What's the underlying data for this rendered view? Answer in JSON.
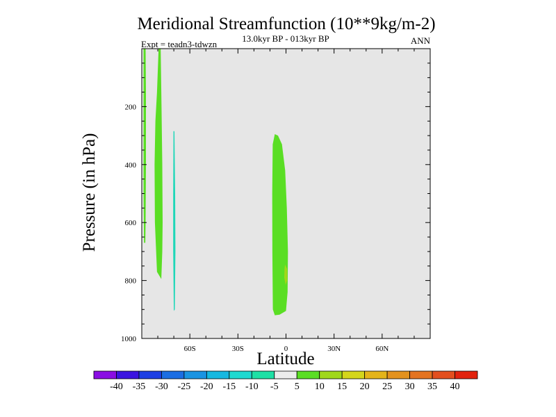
{
  "chart_data": {
    "type": "contour",
    "title": "Meridional Streamfunction (10**9kg/m-2)",
    "subtitle": "13.0kyr BP - 013kyr BP",
    "experiment": "Expt = teadn3-tdwzn",
    "season": "ANN",
    "xlabel": "Latitude",
    "ylabel": "Pressure (in hPa)",
    "xlim": [
      -90,
      90
    ],
    "ylim": [
      0,
      1000
    ],
    "y_inverted": true,
    "x_ticks": [
      {
        "value": -60,
        "label": "60S"
      },
      {
        "value": -30,
        "label": "30S"
      },
      {
        "value": 0,
        "label": "0"
      },
      {
        "value": 30,
        "label": "30N"
      },
      {
        "value": 60,
        "label": "60N"
      }
    ],
    "y_ticks": [
      {
        "value": 200,
        "label": "200"
      },
      {
        "value": 400,
        "label": "400"
      },
      {
        "value": 600,
        "label": "600"
      },
      {
        "value": 800,
        "label": "800"
      },
      {
        "value": 1000,
        "label": "1000"
      }
    ],
    "background_value_range": "-5 to 5",
    "background_color": "#e6e6e6",
    "regions": [
      {
        "name": "sh-polar-thin-positive",
        "level": "5 to 10",
        "color": "#5ade24",
        "outline": [
          [
            -88.9,
            0
          ],
          [
            -87.6,
            0
          ],
          [
            -87.4,
            150
          ],
          [
            -87.4,
            400
          ],
          [
            -87.6,
            600
          ],
          [
            -87.8,
            670
          ],
          [
            -88.6,
            670
          ],
          [
            -88.9,
            500
          ],
          [
            -88.9,
            0
          ]
        ]
      },
      {
        "name": "sh-polar-band-positive",
        "level": "5 to 10",
        "color": "#5ade24",
        "outline": [
          [
            -79.5,
            0
          ],
          [
            -78.2,
            0
          ],
          [
            -77.7,
            200
          ],
          [
            -77.2,
            400
          ],
          [
            -77.0,
            600
          ],
          [
            -77.2,
            700
          ],
          [
            -77.8,
            795
          ],
          [
            -80.5,
            770
          ],
          [
            -81.8,
            600
          ],
          [
            -82.0,
            400
          ],
          [
            -81.5,
            250
          ],
          [
            -80.5,
            150
          ],
          [
            -79.5,
            0
          ]
        ]
      },
      {
        "name": "sh-midlat-negative",
        "level": "-10 to -5",
        "color": "#1ed7b8",
        "outline": [
          [
            -70.2,
            285
          ],
          [
            -69.6,
            285
          ],
          [
            -69.2,
            500
          ],
          [
            -69.0,
            700
          ],
          [
            -69.4,
            900
          ],
          [
            -70.0,
            905
          ],
          [
            -70.4,
            700
          ],
          [
            -70.4,
            500
          ],
          [
            -70.2,
            285
          ]
        ]
      },
      {
        "name": "equatorial-cell-positive",
        "level": "5 to 10",
        "color": "#5ade24",
        "outline": [
          [
            -7.0,
            295
          ],
          [
            -5.0,
            300
          ],
          [
            -2.5,
            330
          ],
          [
            -0.5,
            420
          ],
          [
            0.5,
            550
          ],
          [
            1.2,
            700
          ],
          [
            1.0,
            840
          ],
          [
            0.0,
            905
          ],
          [
            -4.0,
            918
          ],
          [
            -7.0,
            920
          ],
          [
            -8.2,
            900
          ],
          [
            -8.5,
            700
          ],
          [
            -8.6,
            500
          ],
          [
            -8.3,
            330
          ],
          [
            -7.0,
            295
          ]
        ]
      },
      {
        "name": "equatorial-core-positive",
        "level": "10 to 15",
        "color": "#a0d81a",
        "outline": [
          [
            -0.6,
            745
          ],
          [
            0.7,
            760
          ],
          [
            0.8,
            800
          ],
          [
            -0.2,
            815
          ],
          [
            -1.1,
            790
          ],
          [
            -0.9,
            760
          ],
          [
            -0.6,
            745
          ]
        ]
      }
    ],
    "colorbar": {
      "colors": [
        "#8a0ee3",
        "#3b14e0",
        "#1d3fe3",
        "#1c6ee3",
        "#1b94e2",
        "#16b8e0",
        "#1fd9d0",
        "#1ee0a5",
        "#ececec",
        "#5ade24",
        "#a0d81a",
        "#d4d61c",
        "#e4b41a",
        "#e3921e",
        "#e47320",
        "#e34f1e",
        "#e2230e"
      ],
      "labels": [
        "-40",
        "-35",
        "-30",
        "-25",
        "-20",
        "-15",
        "-10",
        "-5",
        "5",
        "10",
        "15",
        "20",
        "25",
        "30",
        "35",
        "40"
      ]
    }
  }
}
